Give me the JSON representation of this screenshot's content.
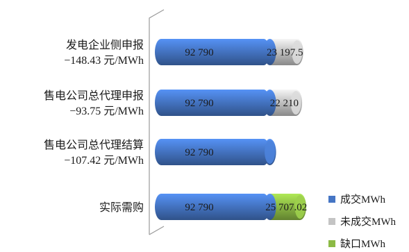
{
  "chart_data": {
    "type": "bar",
    "orientation": "horizontal",
    "stacked": true,
    "style": "3d-cylinder",
    "categories": [
      [
        "发电企业侧申报",
        "−148.43 元/MWh"
      ],
      [
        "售电公司总代理申报",
        "−93.75 元/MWh"
      ],
      [
        "售电公司总代理结算",
        "−107.42 元/MWh"
      ],
      [
        "实际需购"
      ]
    ],
    "series": [
      {
        "name": "成交MWh",
        "color": "#4575c4",
        "values": [
          92790,
          92790,
          92790,
          92790
        ],
        "labels": [
          "92 790",
          "92 790",
          "92 790",
          "92 790"
        ]
      },
      {
        "name": "未成交MWh",
        "color": "#c4c4c4",
        "values": [
          23197.5,
          22210,
          0,
          0
        ],
        "labels": [
          "23 197.5",
          "22 210",
          "",
          ""
        ]
      },
      {
        "name": "缺口MWh",
        "color": "#8cba45",
        "values": [
          0,
          0,
          0,
          25707.02
        ],
        "labels": [
          "",
          "",
          "",
          "25 707.02"
        ]
      }
    ],
    "title": "",
    "xlabel": "",
    "ylabel": "",
    "xlim": [
      0,
      118497
    ],
    "grid": false,
    "legend": "bottom-right"
  }
}
